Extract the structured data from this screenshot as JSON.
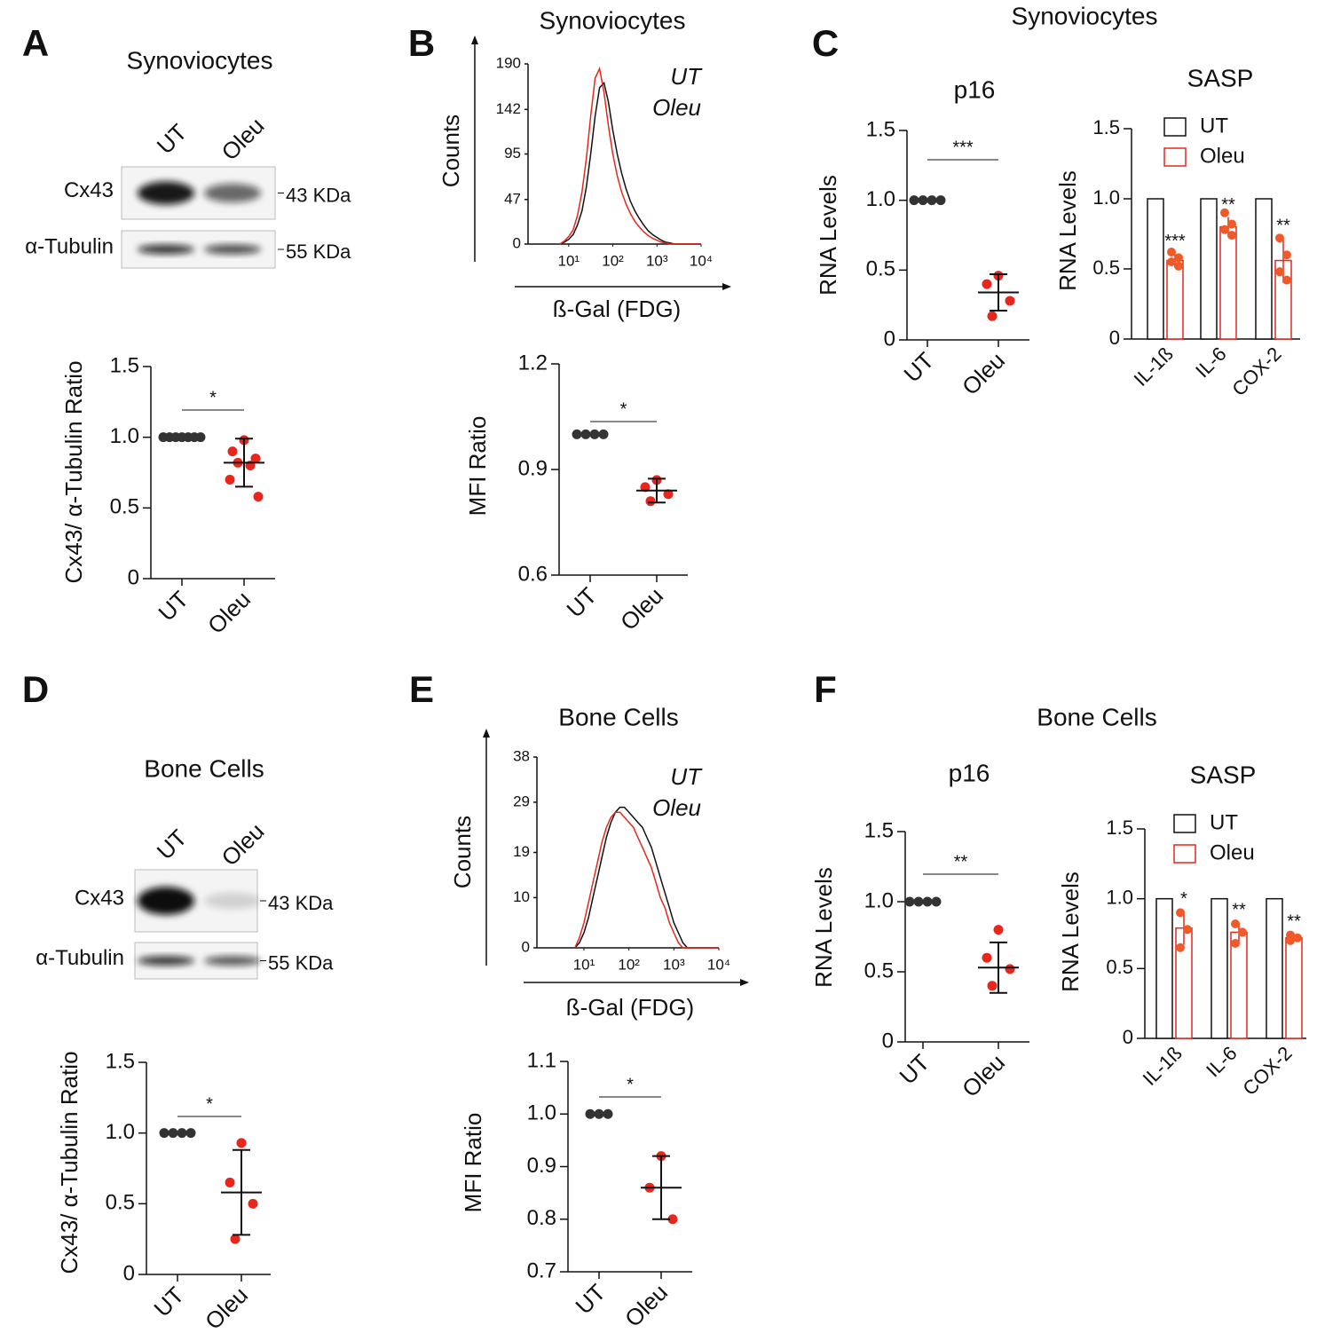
{
  "panels": [
    {
      "label": "A"
    },
    {
      "label": "B"
    },
    {
      "label": "C",
      "title": "Synoviocytes"
    },
    {
      "label": "D"
    },
    {
      "label": "E"
    },
    {
      "label": "F",
      "title": "Bone Cells"
    }
  ],
  "blots": [
    {
      "title": "Synoviocytes",
      "lanes": [
        "UT",
        "Oleu"
      ],
      "rows": [
        {
          "name": "Cx43",
          "size": "43 KDa"
        },
        {
          "name": "α-Tubulin",
          "size": "55 KDa"
        }
      ]
    },
    {
      "title": "Bone Cells",
      "lanes": [
        "UT",
        "Oleu"
      ],
      "rows": [
        {
          "name": "Cx43",
          "size": "43 KDa"
        },
        {
          "name": "α-Tubulin",
          "size": "55 KDa"
        }
      ]
    }
  ],
  "chart_data": [
    {
      "type": "dot",
      "ylabel": "Cx43/ α-Tubulin Ratio",
      "categories": [
        "UT",
        "Oleu"
      ],
      "colors": [
        "#333333",
        "#e8261c"
      ],
      "points": [
        [
          1,
          1,
          1,
          1,
          1,
          1,
          1
        ],
        [
          0.98,
          0.9,
          0.85,
          0.82,
          0.8,
          0.7,
          0.58
        ]
      ],
      "means": [
        null,
        0.82
      ],
      "errors": [
        null,
        0.17
      ],
      "significance": "*",
      "ylim": [
        0,
        1.5
      ],
      "yticks": [
        0,
        0.5,
        {
          "value": 1,
          "label": "1.0"
        },
        1.5
      ]
    },
    {
      "type": "line",
      "title": "Synoviocytes",
      "ylabel": "Counts",
      "xlabel": "ß-Gal (FDG)",
      "log_x": true,
      "x": [
        6.3,
        7.9,
        10,
        12.6,
        15.8,
        20,
        25.1,
        31.6,
        39.8,
        50.1,
        63.1,
        79.4,
        100,
        126,
        158,
        200,
        251,
        316,
        398,
        501,
        631,
        794,
        1000,
        1259,
        1585,
        1995,
        2512,
        3162,
        3981,
        5012,
        6310,
        7943,
        10000
      ],
      "series": [
        {
          "name": "UT",
          "color": "#111111",
          "values": [
            0,
            2,
            5,
            10,
            20,
            35,
            60,
            95,
            135,
            165,
            170,
            150,
            120,
            95,
            75,
            58,
            45,
            35,
            27,
            20,
            14,
            10,
            7,
            4,
            2,
            1,
            0,
            0,
            0,
            0,
            0,
            0,
            0
          ]
        },
        {
          "name": "Oleu",
          "color": "#e8261c",
          "values": [
            0,
            3,
            8,
            15,
            30,
            55,
            90,
            135,
            175,
            185,
            160,
            125,
            95,
            72,
            55,
            42,
            32,
            24,
            18,
            13,
            9,
            6,
            4,
            2,
            1,
            0,
            0,
            0,
            0,
            0,
            0,
            0,
            0
          ]
        }
      ],
      "xlim": [
        1.2,
        10000
      ],
      "xticks": [
        {
          "value": 10,
          "label": "10¹"
        },
        {
          "value": 100,
          "label": "10²"
        },
        {
          "value": 1000,
          "label": "10³"
        },
        {
          "value": 10000,
          "label": "10⁴"
        }
      ],
      "ylim": [
        0,
        190
      ],
      "yticks": [
        0,
        47,
        95,
        142,
        190
      ]
    },
    {
      "type": "dot",
      "ylabel": "MFI Ratio",
      "categories": [
        "UT",
        "Oleu"
      ],
      "colors": [
        "#333333",
        "#e8261c"
      ],
      "points": [
        [
          1,
          1,
          1,
          1
        ],
        [
          0.87,
          0.85,
          0.83,
          0.81
        ]
      ],
      "means": [
        null,
        0.84
      ],
      "errors": [
        null,
        0.034
      ],
      "significance": "*",
      "ylim": [
        0.6,
        1.2
      ],
      "yticks": [
        0.6,
        0.9,
        1.2
      ]
    },
    {
      "type": "dot",
      "title": "p16",
      "ylabel": "RNA Levels",
      "categories": [
        "UT",
        "Oleu"
      ],
      "colors": [
        "#333333",
        "#e8261c"
      ],
      "points": [
        [
          1,
          1,
          1,
          1
        ],
        [
          0.46,
          0.4,
          0.28,
          0.17
        ]
      ],
      "means": [
        null,
        0.34
      ],
      "errors": [
        null,
        0.13
      ],
      "significance": "***",
      "ylim": [
        0,
        1.5
      ],
      "yticks": [
        0,
        0.5,
        {
          "value": 1,
          "label": "1.0"
        },
        1.5
      ]
    },
    {
      "type": "bar",
      "title": "SASP",
      "ylabel": "RNA Levels",
      "categories": [
        "IL-1ß",
        "IL-6",
        "COX-2"
      ],
      "series": [
        {
          "name": "UT",
          "color": "#111111",
          "values": [
            1,
            1,
            1
          ]
        },
        {
          "name": "Oleu",
          "color": "#e8261c",
          "point_color": "#f05a28",
          "values": [
            0.56,
            0.8,
            0.56
          ],
          "errors": [
            0.05,
            0.07,
            0.16
          ],
          "points": [
            [
              0.62,
              0.58,
              0.55,
              0.52
            ],
            [
              0.9,
              0.82,
              0.78,
              0.74
            ],
            [
              0.72,
              0.6,
              0.48,
              0.42
            ]
          ]
        }
      ],
      "annotations": [
        "***",
        "**",
        "**"
      ],
      "ylim": [
        0,
        1.5
      ],
      "yticks": [
        0,
        0.5,
        {
          "value": 1,
          "label": "1.0"
        },
        1.5
      ]
    },
    {
      "type": "dot",
      "ylabel": "Cx43/ α-Tubulin Ratio",
      "categories": [
        "UT",
        "Oleu"
      ],
      "colors": [
        "#333333",
        "#e8261c"
      ],
      "points": [
        [
          1,
          1,
          1,
          1
        ],
        [
          0.93,
          0.65,
          0.5,
          0.25
        ]
      ],
      "means": [
        null,
        0.58
      ],
      "errors": [
        null,
        0.3
      ],
      "significance": "*",
      "ylim": [
        0,
        1.5
      ],
      "yticks": [
        0,
        0.5,
        {
          "value": 1,
          "label": "1.0"
        },
        1.5
      ]
    },
    {
      "type": "line",
      "title": "Bone Cells",
      "ylabel": "Counts",
      "xlabel": "ß-Gal (FDG)",
      "log_x": true,
      "x": [
        6.3,
        7.9,
        10,
        12.6,
        15.8,
        20,
        25.1,
        31.6,
        39.8,
        50.1,
        63.1,
        79.4,
        100,
        126,
        158,
        200,
        251,
        316,
        398,
        501,
        631,
        794,
        1000,
        1259,
        1585,
        1995,
        2512,
        3162,
        3981,
        5012,
        6310,
        7943,
        10000
      ],
      "series": [
        {
          "name": "UT",
          "color": "#111111",
          "values": [
            0,
            1,
            3,
            6,
            10,
            14,
            18,
            22,
            25,
            27,
            28,
            28,
            27,
            26,
            25,
            24,
            22,
            20,
            17,
            14,
            11,
            8,
            5,
            3,
            1,
            0,
            0,
            0,
            0,
            0,
            0,
            0,
            0
          ]
        },
        {
          "name": "Oleu",
          "color": "#e8261c",
          "values": [
            0,
            2,
            5,
            9,
            13,
            17,
            21,
            24,
            26,
            27,
            27,
            26,
            25,
            24,
            22,
            20,
            18,
            16,
            13,
            10,
            8,
            5,
            3,
            1,
            0,
            0,
            0,
            0,
            0,
            0,
            0,
            0,
            0
          ]
        }
      ],
      "xlim": [
        0.9,
        10000
      ],
      "xticks": [
        {
          "value": 10,
          "label": "10¹"
        },
        {
          "value": 100,
          "label": "10²"
        },
        {
          "value": 1000,
          "label": "10³"
        },
        {
          "value": 10000,
          "label": "10⁴"
        }
      ],
      "ylim": [
        0,
        38
      ],
      "yticks": [
        0,
        10,
        19,
        29,
        38
      ]
    },
    {
      "type": "dot",
      "ylabel": "MFI Ratio",
      "categories": [
        "UT",
        "Oleu"
      ],
      "colors": [
        "#333333",
        "#e8261c"
      ],
      "points": [
        [
          1,
          1,
          1
        ],
        [
          0.92,
          0.86,
          0.8
        ]
      ],
      "means": [
        null,
        0.86
      ],
      "errors": [
        null,
        0.06
      ],
      "significance": "*",
      "ylim": [
        0.7,
        1.1
      ],
      "yticks": [
        0.7,
        0.8,
        0.9,
        {
          "value": 1,
          "label": "1.0"
        },
        1.1
      ]
    },
    {
      "type": "dot",
      "title": "p16",
      "ylabel": "RNA Levels",
      "categories": [
        "UT",
        "Oleu"
      ],
      "colors": [
        "#333333",
        "#e8261c"
      ],
      "points": [
        [
          1,
          1,
          1,
          1
        ],
        [
          0.8,
          0.6,
          0.52,
          0.4
        ]
      ],
      "means": [
        null,
        0.53
      ],
      "errors": [
        null,
        0.18
      ],
      "significance": "**",
      "ylim": [
        0,
        1.5
      ],
      "yticks": [
        0,
        0.5,
        {
          "value": 1,
          "label": "1.0"
        },
        1.5
      ]
    },
    {
      "type": "bar",
      "title": "SASP",
      "ylabel": "RNA Levels",
      "categories": [
        "IL-1ß",
        "IL-6",
        "COX-2"
      ],
      "series": [
        {
          "name": "UT",
          "color": "#111111",
          "values": [
            1,
            1,
            1
          ]
        },
        {
          "name": "Oleu",
          "color": "#e8261c",
          "point_color": "#f05a28",
          "values": [
            0.79,
            0.76,
            0.72
          ],
          "errors": [
            0.12,
            0.07,
            0.03
          ],
          "points": [
            [
              0.9,
              0.78,
              0.65
            ],
            [
              0.82,
              0.76,
              0.68
            ],
            [
              0.74,
              0.72,
              0.7
            ]
          ]
        }
      ],
      "annotations": [
        "*",
        "**",
        "**"
      ],
      "ylim": [
        0,
        1.5
      ],
      "yticks": [
        0,
        0.5,
        {
          "value": 1,
          "label": "1.0"
        },
        1.5
      ]
    }
  ]
}
